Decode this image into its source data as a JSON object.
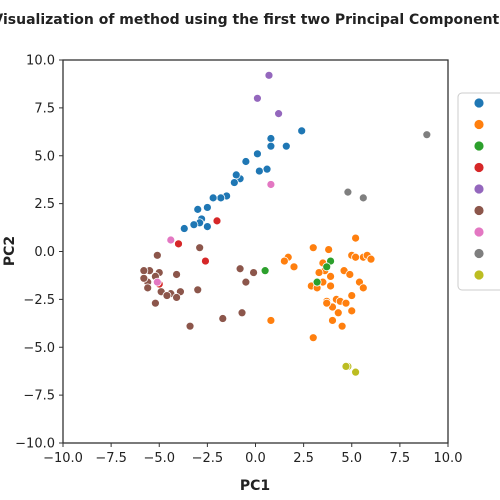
{
  "chart_data": {
    "type": "scatter",
    "title": "Visualization of method using the first two Principal Components",
    "xlabel": "PC1",
    "ylabel": "PC2",
    "xlim": [
      -10,
      10
    ],
    "ylim": [
      -10,
      10
    ],
    "xticks": [
      -10.0,
      -7.5,
      -5.0,
      -2.5,
      0.0,
      2.5,
      5.0,
      7.5,
      10.0
    ],
    "yticks": [
      -10.0,
      -7.5,
      -5.0,
      -2.5,
      0.0,
      2.5,
      5.0,
      7.5,
      10.0
    ],
    "xtick_labels": [
      "−10.0",
      "−7.5",
      "−5.0",
      "−2.5",
      "0.0",
      "2.5",
      "5.0",
      "7.5",
      "10.0"
    ],
    "ytick_labels": [
      "−10.0",
      "−7.5",
      "−5.0",
      "−2.5",
      "0.0",
      "2.5",
      "5.0",
      "7.5",
      "10.0"
    ],
    "grid": false,
    "legend_placement": "right, outside plot (clipped)",
    "series": [
      {
        "color": "#1f77b4",
        "points": [
          [
            0.8,
            5.9
          ],
          [
            0.8,
            5.5
          ],
          [
            2.4,
            6.3
          ],
          [
            1.6,
            5.5
          ],
          [
            0.1,
            5.1
          ],
          [
            -0.5,
            4.7
          ],
          [
            0.6,
            4.3
          ],
          [
            0.2,
            4.2
          ],
          [
            -0.8,
            3.8
          ],
          [
            -1.0,
            4.0
          ],
          [
            -1.1,
            3.6
          ],
          [
            -1.5,
            2.9
          ],
          [
            -1.8,
            2.8
          ],
          [
            -2.2,
            2.8
          ],
          [
            -2.5,
            2.3
          ],
          [
            -3.0,
            2.2
          ],
          [
            -2.8,
            1.7
          ],
          [
            -2.9,
            1.5
          ],
          [
            -2.5,
            1.3
          ],
          [
            -3.2,
            1.4
          ],
          [
            -3.7,
            1.2
          ]
        ]
      },
      {
        "color": "#ff7f0e",
        "points": [
          [
            3.0,
            0.2
          ],
          [
            3.8,
            0.1
          ],
          [
            5.2,
            0.7
          ],
          [
            1.7,
            -0.3
          ],
          [
            2.0,
            -0.8
          ],
          [
            1.5,
            -0.5
          ],
          [
            3.5,
            -0.6
          ],
          [
            5.0,
            -0.2
          ],
          [
            5.2,
            -0.3
          ],
          [
            5.6,
            -0.3
          ],
          [
            5.8,
            -0.2
          ],
          [
            6.0,
            -0.4
          ],
          [
            3.6,
            -1.0
          ],
          [
            3.3,
            -1.1
          ],
          [
            3.9,
            -1.3
          ],
          [
            3.9,
            -1.8
          ],
          [
            3.5,
            -1.6
          ],
          [
            2.9,
            -1.8
          ],
          [
            3.2,
            -1.9
          ],
          [
            4.6,
            -1.0
          ],
          [
            4.9,
            -1.2
          ],
          [
            5.4,
            -1.6
          ],
          [
            5.6,
            -1.9
          ],
          [
            5.0,
            -2.3
          ],
          [
            4.2,
            -2.5
          ],
          [
            4.4,
            -2.6
          ],
          [
            4.7,
            -2.7
          ],
          [
            5.0,
            -3.1
          ],
          [
            3.7,
            -2.6
          ],
          [
            4.0,
            -2.9
          ],
          [
            3.7,
            -2.7
          ],
          [
            4.3,
            -3.2
          ],
          [
            4.5,
            -3.9
          ],
          [
            4.0,
            -3.6
          ],
          [
            0.8,
            -3.6
          ],
          [
            3.0,
            -4.5
          ]
        ]
      },
      {
        "color": "#2ca02c",
        "points": [
          [
            3.9,
            -0.5
          ],
          [
            3.7,
            -0.8
          ],
          [
            3.2,
            -1.6
          ],
          [
            0.5,
            -1.0
          ]
        ]
      },
      {
        "color": "#d62728",
        "points": [
          [
            -2.0,
            1.6
          ],
          [
            -4.0,
            0.4
          ],
          [
            -2.6,
            -0.5
          ],
          [
            -5.0,
            -1.7
          ]
        ]
      },
      {
        "color": "#9467bd",
        "points": [
          [
            0.7,
            9.2
          ],
          [
            1.2,
            7.2
          ],
          [
            0.1,
            8.0
          ]
        ]
      },
      {
        "color": "#8c564b",
        "points": [
          [
            -5.1,
            -0.2
          ],
          [
            -5.5,
            -1.0
          ],
          [
            -5.0,
            -1.1
          ],
          [
            -4.1,
            -1.2
          ],
          [
            -5.2,
            -1.3
          ],
          [
            -5.6,
            -1.6
          ],
          [
            -5.8,
            -1.0
          ],
          [
            -5.8,
            -1.4
          ],
          [
            -5.6,
            -1.9
          ],
          [
            -4.9,
            -2.1
          ],
          [
            -4.4,
            -2.2
          ],
          [
            -4.6,
            -2.3
          ],
          [
            -3.9,
            -2.1
          ],
          [
            -4.1,
            -2.4
          ],
          [
            -5.2,
            -2.7
          ],
          [
            -3.0,
            -2.0
          ],
          [
            -2.9,
            0.2
          ],
          [
            -3.4,
            -3.9
          ],
          [
            -1.7,
            -3.5
          ],
          [
            -0.8,
            -0.9
          ],
          [
            -0.7,
            -3.2
          ],
          [
            -0.5,
            -1.6
          ],
          [
            -0.1,
            -1.1
          ]
        ]
      },
      {
        "color": "#e377c2",
        "points": [
          [
            0.8,
            3.5
          ],
          [
            -4.4,
            0.6
          ],
          [
            -5.1,
            -1.6
          ]
        ]
      },
      {
        "color": "#7f7f7f",
        "points": [
          [
            8.9,
            6.1
          ],
          [
            4.8,
            3.1
          ],
          [
            5.6,
            2.8
          ]
        ]
      },
      {
        "color": "#bcbd22",
        "points": [
          [
            4.8,
            -6.0
          ],
          [
            5.2,
            -6.3
          ],
          [
            4.7,
            -6.0
          ]
        ]
      }
    ]
  }
}
